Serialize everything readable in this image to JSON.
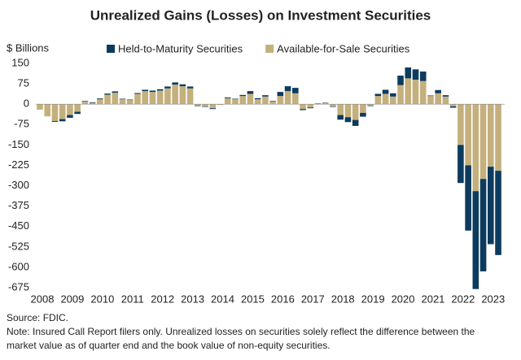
{
  "chart_data": {
    "type": "stacked_bar",
    "title": "Unrealized Gains (Losses) on Investment Securities",
    "y_label": "$ Billions",
    "source": "Source: FDIC.",
    "note": [
      "Note: Insured Call Report filers only. Unrealized losses on securities solely reflect the difference between the",
      "market value as of quarter end and the book value of non-equity securities."
    ],
    "categories": [
      "2008",
      null,
      null,
      null,
      "2009",
      null,
      null,
      null,
      "2010",
      null,
      null,
      null,
      "2011",
      null,
      null,
      null,
      "2012",
      null,
      null,
      null,
      "2013",
      null,
      null,
      null,
      "2014",
      null,
      null,
      null,
      "2015",
      null,
      null,
      null,
      "2016",
      null,
      null,
      null,
      "2017",
      null,
      null,
      null,
      "2018",
      null,
      null,
      null,
      "2019",
      null,
      null,
      null,
      "2020",
      null,
      null,
      null,
      "2021",
      null,
      null,
      null,
      "2022",
      null,
      null,
      null,
      "2023",
      null
    ],
    "series": [
      {
        "name": "Held-to-Maturity Securities",
        "color": "#0d3b5e",
        "values": [
          0,
          0,
          -3,
          -8,
          -10,
          -8,
          2,
          2,
          3,
          4,
          5,
          2,
          2,
          3,
          5,
          5,
          5,
          7,
          8,
          7,
          7,
          -2,
          -2,
          -3,
          0,
          3,
          2,
          4,
          10,
          4,
          5,
          2,
          15,
          18,
          20,
          -4,
          -3,
          1,
          1,
          -2,
          -17,
          -18,
          -22,
          -14,
          -2,
          8,
          15,
          12,
          35,
          40,
          38,
          35,
          2,
          12,
          5,
          -5,
          -140,
          -240,
          -360,
          -340,
          -285,
          -310
        ]
      },
      {
        "name": "Available-for-Sale Securities",
        "color": "#c4b07d",
        "values": [
          -20,
          -45,
          -62,
          -55,
          -40,
          -28,
          10,
          5,
          18,
          35,
          42,
          18,
          15,
          38,
          48,
          45,
          50,
          58,
          72,
          66,
          58,
          -5,
          -8,
          -15,
          -3,
          22,
          18,
          30,
          38,
          18,
          28,
          10,
          30,
          48,
          40,
          -18,
          -12,
          2,
          5,
          -8,
          -40,
          -48,
          -58,
          -32,
          -5,
          30,
          38,
          28,
          70,
          95,
          90,
          85,
          30,
          40,
          28,
          -8,
          -150,
          -225,
          -320,
          -275,
          -230,
          -245
        ]
      }
    ],
    "ylim": [
      -675,
      150
    ],
    "yticks": [
      150,
      75,
      0,
      -75,
      -150,
      -225,
      -300,
      -375,
      -450,
      -525,
      -600,
      -675
    ],
    "grid": false
  }
}
